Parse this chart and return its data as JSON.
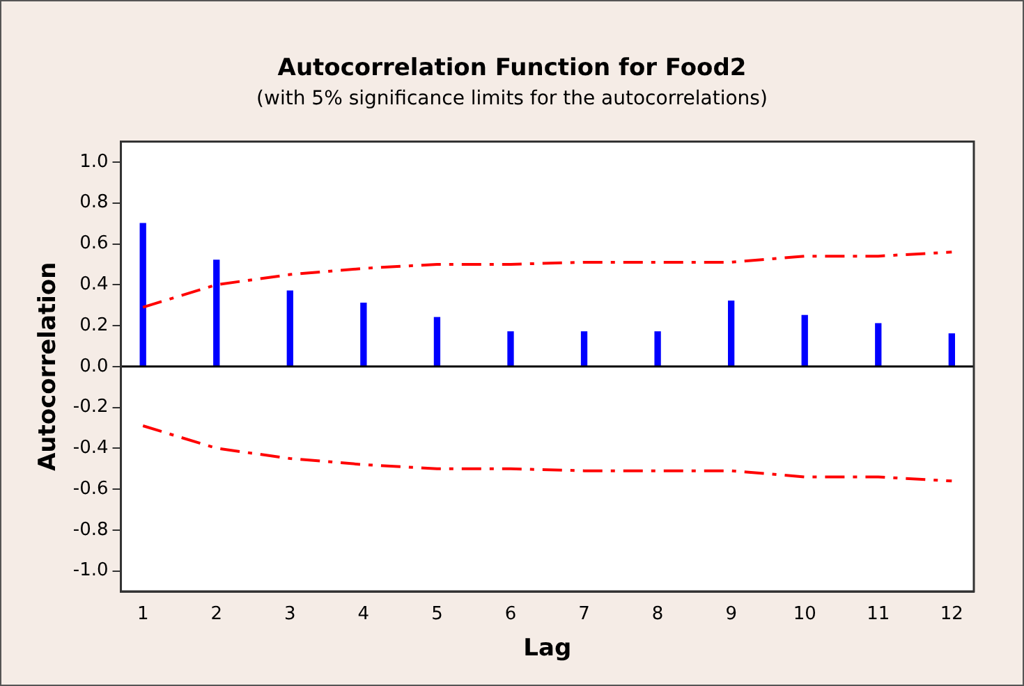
{
  "chart_data": {
    "type": "bar",
    "title": "Autocorrelation Function for Food2",
    "subtitle": "(with 5% significance limits for the autocorrelations)",
    "xlabel": "Lag",
    "ylabel": "Autocorrelation",
    "x": [
      1,
      2,
      3,
      4,
      5,
      6,
      7,
      8,
      9,
      10,
      11,
      12
    ],
    "xlim": [
      0.7,
      12.3
    ],
    "xticks": [
      1,
      2,
      3,
      4,
      5,
      6,
      7,
      8,
      9,
      10,
      11,
      12
    ],
    "series": [
      {
        "color": "#0000ff",
        "values": [
          0.7,
          0.52,
          0.37,
          0.31,
          0.24,
          0.17,
          0.17,
          0.17,
          0.32,
          0.25,
          0.21,
          0.16
        ]
      },
      {
        "type": "line",
        "color": "#ff0000",
        "line_style": "dashed",
        "values": [
          0.29,
          0.4,
          0.45,
          0.48,
          0.5,
          0.5,
          0.51,
          0.51,
          0.51,
          0.54,
          0.54,
          0.56
        ]
      },
      {
        "type": "line",
        "color": "#ff0000",
        "line_style": "dashed",
        "values": [
          -0.29,
          -0.4,
          -0.45,
          -0.48,
          -0.5,
          -0.5,
          -0.51,
          -0.51,
          -0.51,
          -0.54,
          -0.54,
          -0.56
        ]
      }
    ],
    "ylim": [
      -1.1,
      1.1
    ],
    "yticks": [
      {
        "value": -1,
        "label": "-1.0"
      },
      {
        "value": -0.8,
        "label": "-0.8"
      },
      {
        "value": -0.6,
        "label": "-0.6"
      },
      {
        "value": -0.4,
        "label": "-0.4"
      },
      {
        "value": -0.2,
        "label": "-0.2"
      },
      {
        "value": 0,
        "label": "0.0"
      },
      {
        "value": 0.2,
        "label": "0.2"
      },
      {
        "value": 0.4,
        "label": "0.4"
      },
      {
        "value": 0.6,
        "label": "0.6"
      },
      {
        "value": 0.8,
        "label": "0.8"
      },
      {
        "value": 1,
        "label": "1.0"
      }
    ],
    "ref_lines": [
      {
        "axis": "y",
        "value": 0,
        "color": "#000000"
      }
    ],
    "grid": false,
    "legend": false,
    "marker": "none"
  }
}
